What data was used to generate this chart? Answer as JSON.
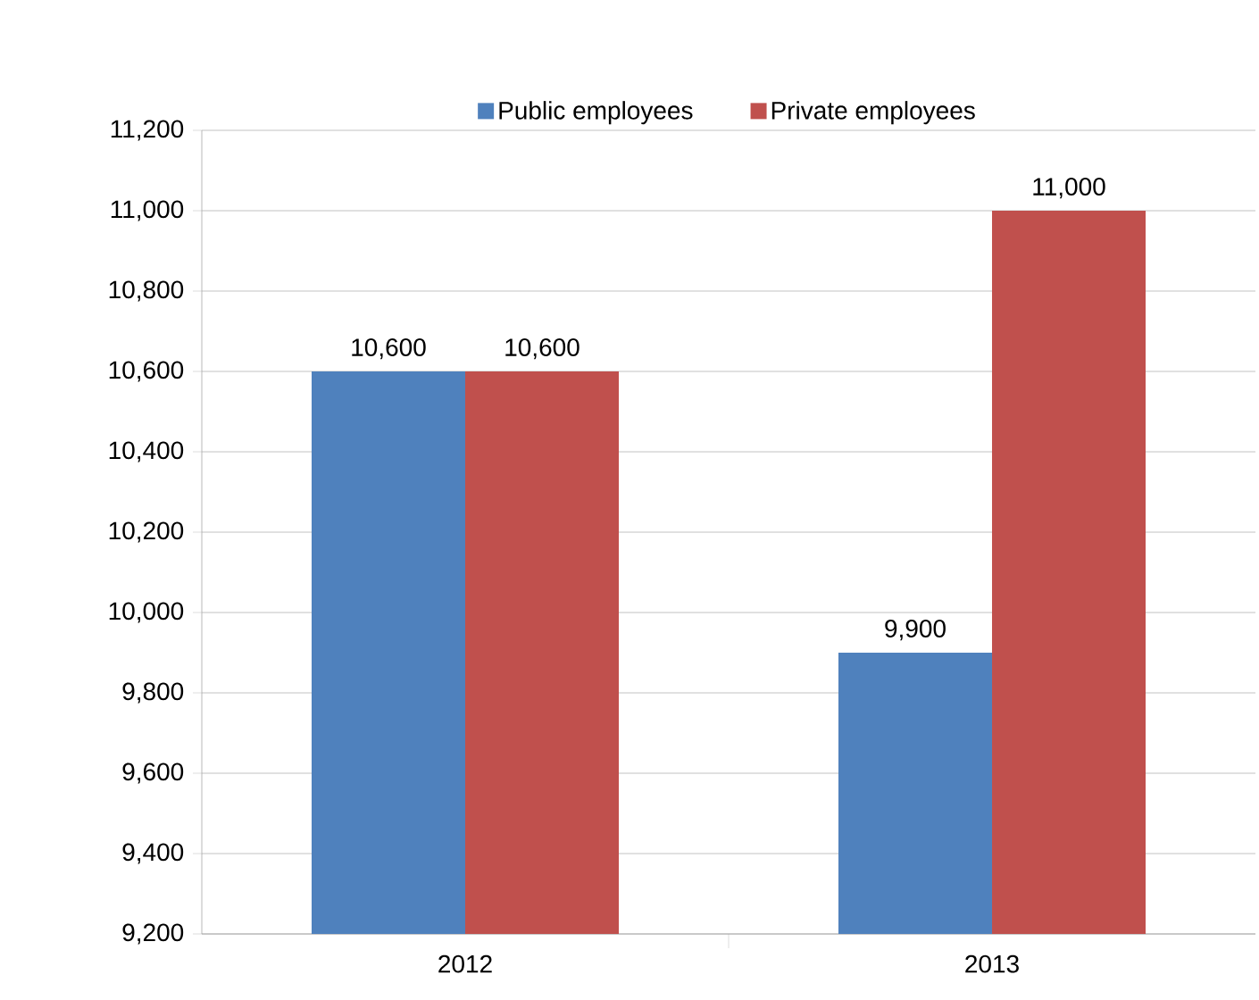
{
  "chart_data": {
    "type": "bar",
    "categories": [
      "2012",
      "2013"
    ],
    "series": [
      {
        "name": "Public employees",
        "color": "#4f81bd",
        "values": [
          10600,
          9900
        ],
        "value_labels": [
          "10,600",
          "9,900"
        ]
      },
      {
        "name": "Private employees",
        "color": "#c0504d",
        "values": [
          10600,
          11000
        ],
        "value_labels": [
          "10,600",
          "11,000"
        ]
      }
    ],
    "ylim": [
      9200,
      11200
    ],
    "yticks": [
      {
        "value": 9200,
        "label": "9,200"
      },
      {
        "value": 9400,
        "label": "9,400"
      },
      {
        "value": 9600,
        "label": "9,600"
      },
      {
        "value": 9800,
        "label": "9,800"
      },
      {
        "value": 10000,
        "label": "10,000"
      },
      {
        "value": 10200,
        "label": "10,200"
      },
      {
        "value": 10400,
        "label": "10,400"
      },
      {
        "value": 10600,
        "label": "10,600"
      },
      {
        "value": 10800,
        "label": "10,800"
      },
      {
        "value": 11000,
        "label": "11,000"
      },
      {
        "value": 11200,
        "label": "11,200"
      }
    ],
    "grid": "y",
    "legend": "top"
  }
}
